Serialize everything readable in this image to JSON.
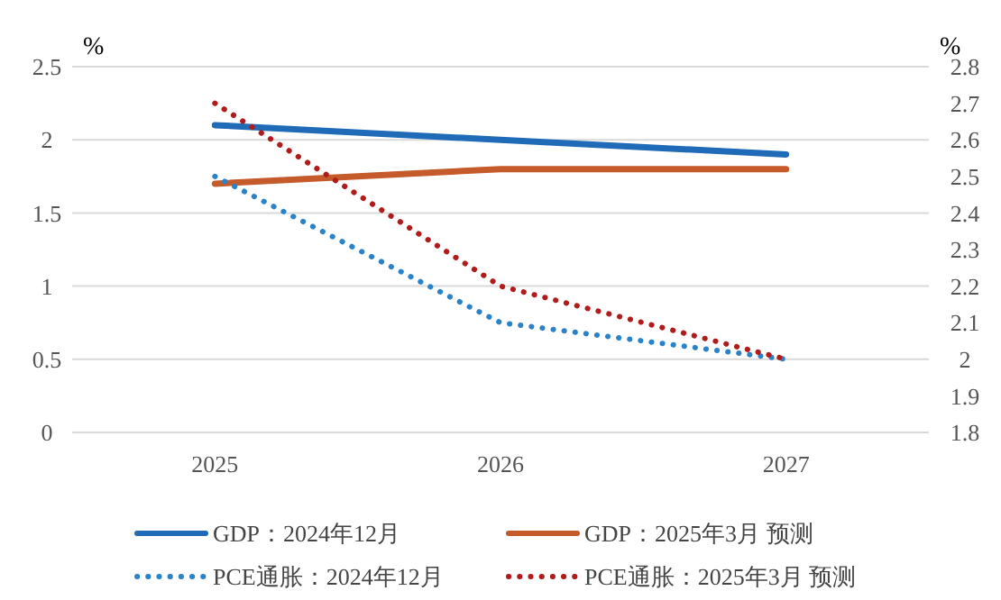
{
  "chart_data": {
    "type": "line",
    "ylabel": "%",
    "y2label": "%",
    "categories": [
      "2025",
      "2026",
      "2027"
    ],
    "ylim": [
      0,
      2.5
    ],
    "yticks": [
      0,
      0.5,
      1,
      1.5,
      2,
      2.5
    ],
    "y2lim": [
      1.8,
      2.8
    ],
    "y2ticks": [
      1.8,
      1.9,
      2,
      2.1,
      2.2,
      2.3,
      2.4,
      2.5,
      2.6,
      2.7,
      2.8
    ],
    "grid": "y",
    "legend": "bottom",
    "marker": "none",
    "series": [
      {
        "name": "GDP：2024年12月",
        "color": "#1f6bb8",
        "values": [
          2.1,
          2.0,
          1.9
        ],
        "line_style": "solid"
      },
      {
        "name": "GDP：2025年3月 预测",
        "color": "#c55a2b",
        "values": [
          1.7,
          1.8,
          1.8
        ],
        "line_style": "solid"
      },
      {
        "name": "PCE通胀：2024年12月",
        "color": "#2a82c9",
        "values": [
          2.5,
          2.1,
          2.0
        ],
        "line_style": "dotted",
        "axis": "y2"
      },
      {
        "name": "PCE通胀：2025年3月 预测",
        "color": "#b01b1b",
        "values": [
          2.7,
          2.2,
          2.0
        ],
        "line_style": "dotted",
        "axis": "y2"
      }
    ]
  }
}
